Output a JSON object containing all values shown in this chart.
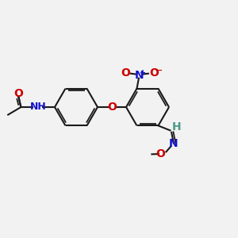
{
  "bg_color": "#f2f2f2",
  "bond_color": "#1a1a1a",
  "oxygen_color": "#cc0000",
  "nitrogen_color": "#1414cc",
  "hydrogen_color": "#4a9a8a",
  "lw": 1.5,
  "figsize": [
    3.0,
    3.0
  ],
  "dpi": 100,
  "xlim": [
    0,
    10
  ],
  "ylim": [
    0,
    10
  ]
}
